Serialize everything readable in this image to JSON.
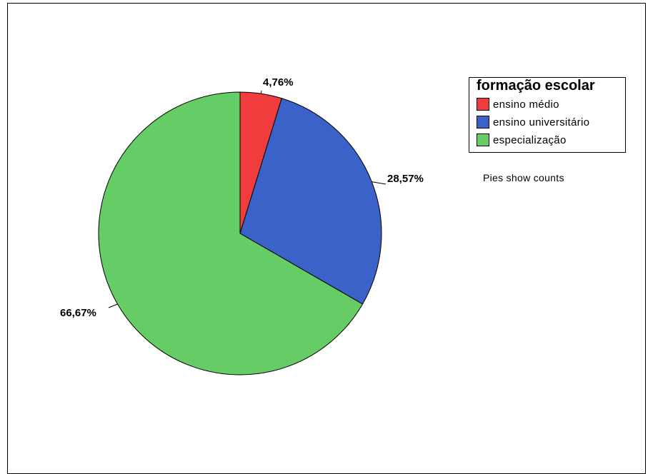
{
  "chart_data": {
    "type": "pie",
    "title": "",
    "legend_title": "formação escolar",
    "categories": [
      "ensino médio",
      "ensino universitário",
      "especialização"
    ],
    "values": [
      4.76,
      28.57,
      66.67
    ],
    "labels": [
      "4,76%",
      "28,57%",
      "66,67%"
    ],
    "colors": [
      "#f03c3c",
      "#3a62c8",
      "#66cc66"
    ],
    "legend_position": "top-right",
    "note": "Pies show counts"
  }
}
